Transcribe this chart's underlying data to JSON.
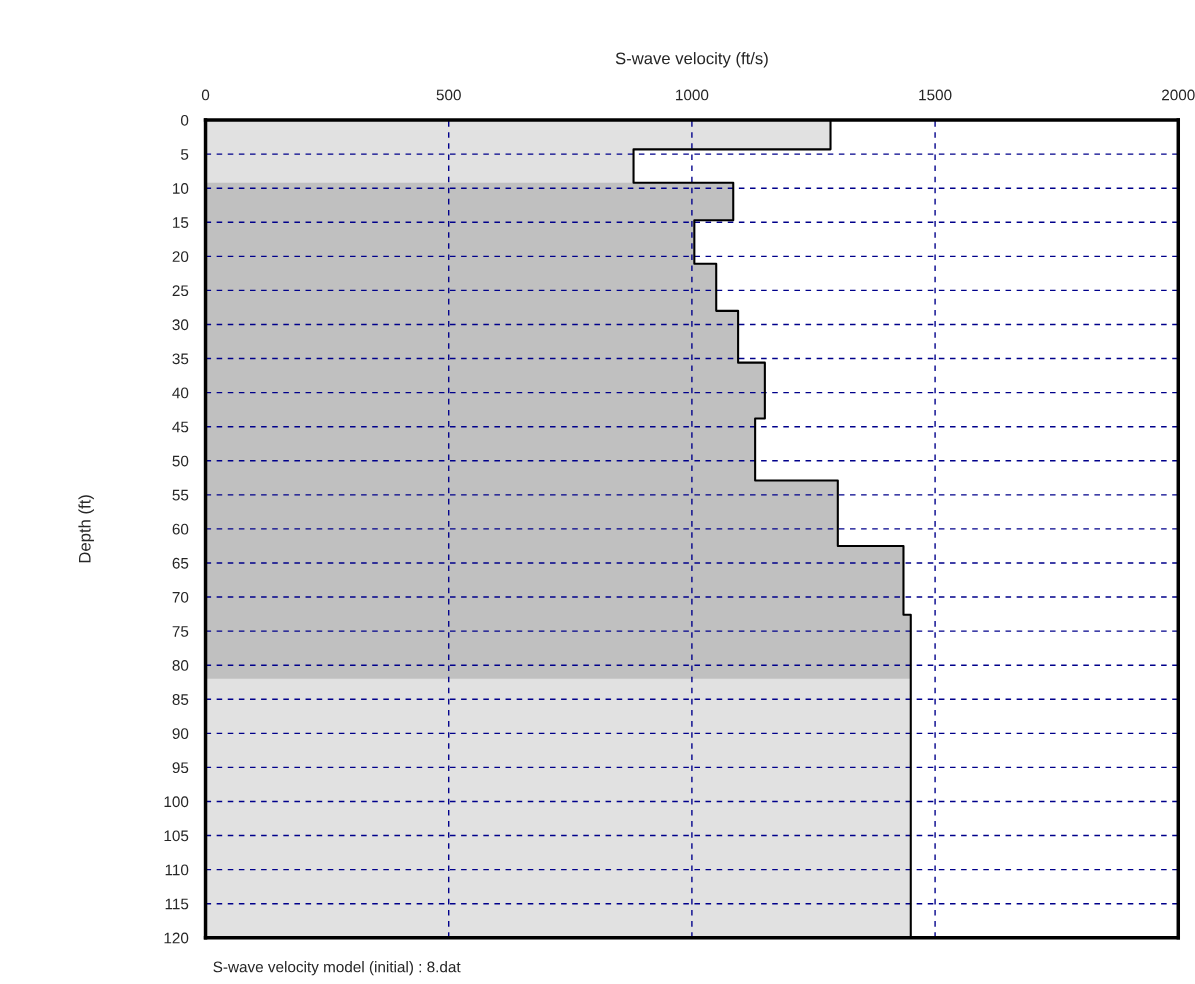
{
  "chart_data": {
    "type": "step",
    "orientation": "horizontal",
    "xlabel": "S-wave velocity (ft/s)",
    "ylabel": "Depth (ft)",
    "x": [
      0,
      4.3,
      9.2,
      14.7,
      21.1,
      28,
      35.6,
      43.8,
      52.9,
      62.5,
      72.6,
      120
    ],
    "series": [
      {
        "color": "#000000",
        "values": [
          1285,
          880,
          1085,
          1005,
          1050,
          1095,
          1150,
          1130,
          1300,
          1435,
          1450,
          1450
        ]
      }
    ],
    "bands": [
      {
        "axis": "y",
        "from": 0,
        "to": 120,
        "color": "#e1e1e1"
      },
      {
        "axis": "y",
        "from": 9.2,
        "to": 82,
        "color": "#c0c0c0"
      }
    ],
    "xlim": [
      0,
      2000
    ],
    "xticks": [
      0,
      500,
      1000,
      1500,
      2000
    ],
    "ylim": [
      120,
      0
    ],
    "yticks": [
      0,
      5,
      10,
      15,
      20,
      25,
      30,
      35,
      40,
      45,
      50,
      55,
      60,
      65,
      70,
      75,
      80,
      85,
      90,
      95,
      100,
      105,
      110,
      115,
      120
    ],
    "grid": true,
    "line_style": "solid",
    "annotations": [
      "S-wave velocity model (initial) : 8.dat"
    ]
  }
}
